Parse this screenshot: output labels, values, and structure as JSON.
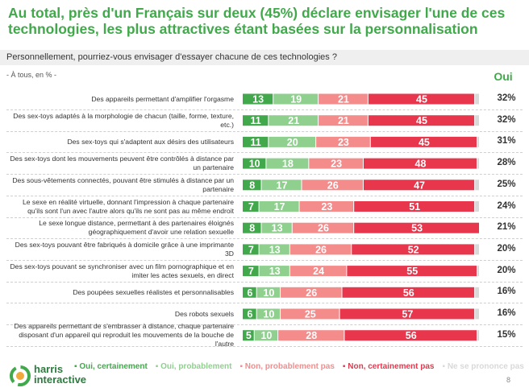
{
  "title": "Au total, près d'un Français sur deux (45%) déclare envisager l'une de ces technologies, les plus attractives étant basées sur la personnalisation",
  "question": "Personnellement, pourriez-vous envisager d'essayer chacune de ces technologies ?",
  "base": "- À tous, en % -",
  "oui_header": "Oui",
  "page_number": "8",
  "logo": {
    "line1": "harris",
    "line2": "interactive"
  },
  "colors": {
    "oui_certainement": "#41a94b",
    "oui_probablement": "#8fd08f",
    "non_probablement_pas": "#f48c8c",
    "non_certainement_pas": "#e8364c",
    "ne_se_prononce_pas": "#d9d9d9",
    "title": "#41a94b"
  },
  "chart_data": {
    "type": "bar",
    "orientation": "horizontal-stacked",
    "title": "Personnellement, pourriez-vous envisager d'essayer chacune de ces technologies ?",
    "categories": [
      "Des appareils permettant d'amplifier l'orgasme",
      "Des sex-toys adaptés à la morphologie de chacun (taille, forme, texture, etc.)",
      "Des sex-toys qui s'adaptent aux désirs des utilisateurs",
      "Des sex-toys dont les mouvements peuvent être contrôlés à distance par un partenaire",
      "Des sous-vêtements connectés, pouvant être stimulés à distance par un partenaire",
      "Le sexe en réalité virtuelle, donnant l'impression à chaque partenaire qu'ils sont l'un avec l'autre alors qu'ils ne sont pas au même endroit",
      "Le sexe longue distance, permettant à des partenaires éloignés géographiquement d'avoir une relation sexuelle",
      "Des sex-toys pouvant être fabriqués à domicile grâce à une imprimante 3D",
      "Des sex-toys pouvant se synchroniser avec un film pornographique et en imiter les actes sexuels, en direct",
      "Des poupées sexuelles réalistes et personnalisables",
      "Des robots sexuels",
      "Des appareils permettant de s'embrasser à distance, chaque partenaire disposant d'un appareil qui reproduit les mouvements de la bouche de l'autre"
    ],
    "series": [
      {
        "name": "Oui, certainement",
        "color": "#41a94b",
        "values": [
          13,
          11,
          11,
          10,
          8,
          7,
          8,
          7,
          7,
          6,
          6,
          5
        ]
      },
      {
        "name": "Oui, probablement",
        "color": "#8fd08f",
        "values": [
          19,
          21,
          20,
          18,
          17,
          17,
          13,
          13,
          13,
          10,
          10,
          10
        ]
      },
      {
        "name": "Non, probablement pas",
        "color": "#f48c8c",
        "values": [
          21,
          21,
          23,
          23,
          26,
          23,
          26,
          26,
          24,
          26,
          25,
          28
        ]
      },
      {
        "name": "Non, certainement pas",
        "color": "#e8364c",
        "values": [
          45,
          45,
          45,
          48,
          47,
          51,
          53,
          52,
          55,
          56,
          57,
          56
        ]
      },
      {
        "name": "Ne se prononce pas",
        "color": "#d9d9d9",
        "values": [
          2,
          2,
          1,
          1,
          2,
          2,
          0,
          2,
          1,
          2,
          2,
          1
        ]
      }
    ],
    "oui_total": [
      "32%",
      "32%",
      "31%",
      "28%",
      "25%",
      "24%",
      "21%",
      "20%",
      "20%",
      "16%",
      "16%",
      "15%"
    ],
    "xlim": [
      0,
      100
    ]
  }
}
